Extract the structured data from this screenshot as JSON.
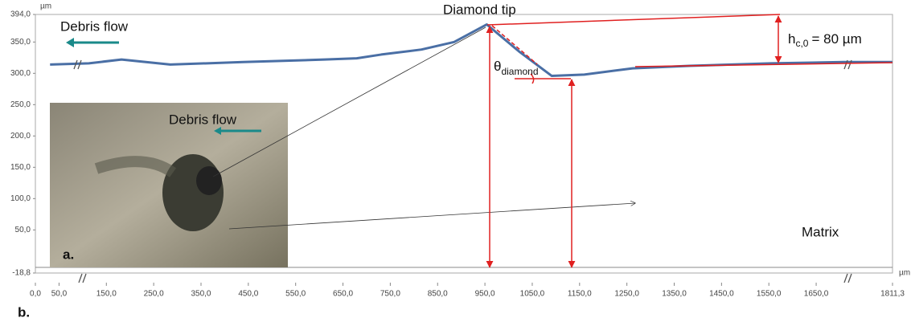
{
  "chart_data": {
    "type": "line",
    "y_unit": "µm",
    "x_unit": "µm",
    "x": [
      31,
      113,
      182,
      285,
      439,
      611,
      679,
      731,
      816,
      885,
      954,
      1022,
      1091,
      1160,
      1262,
      1382,
      1554,
      1708,
      1811
    ],
    "series": [
      {
        "color": "#4a6fa5",
        "values": [
          314,
          316,
          322,
          314,
          318,
          322,
          324,
          330,
          338,
          350,
          378,
          335,
          296,
          298,
          308,
          312,
          316,
          318,
          318
        ]
      }
    ],
    "xlim": [
      0,
      1811.3
    ],
    "ylim": [
      -18.8,
      394
    ],
    "xticks": [
      {
        "value": 0,
        "label": "0,0"
      },
      {
        "value": 50,
        "label": "50,0"
      },
      {
        "value": 150,
        "label": "150,0"
      },
      {
        "value": 250,
        "label": "250,0"
      },
      {
        "value": 350,
        "label": "350,0"
      },
      {
        "value": 450,
        "label": "450,0"
      },
      {
        "value": 550,
        "label": "550,0"
      },
      {
        "value": 650,
        "label": "650,0"
      },
      {
        "value": 750,
        "label": "750,0"
      },
      {
        "value": 850,
        "label": "850,0"
      },
      {
        "value": 950,
        "label": "950,0"
      },
      {
        "value": 1050,
        "label": "1050,0"
      },
      {
        "value": 1150,
        "label": "1150,0"
      },
      {
        "value": 1250,
        "label": "1250,0"
      },
      {
        "value": 1350,
        "label": "1350,0"
      },
      {
        "value": 1450,
        "label": "1450,0"
      },
      {
        "value": 1550,
        "label": "1550,0"
      },
      {
        "value": 1650,
        "label": "1650,0"
      },
      {
        "value": 1811.3,
        "label": "1811,3"
      }
    ],
    "yticks": [
      {
        "value": 394,
        "label": "394,0"
      },
      {
        "value": 350,
        "label": "350,0"
      },
      {
        "value": 300,
        "label": "300,0"
      },
      {
        "value": 250,
        "label": "250,0"
      },
      {
        "value": 200,
        "label": "200,0"
      },
      {
        "value": 150,
        "label": "150,0"
      },
      {
        "value": 100,
        "label": "100,0"
      },
      {
        "value": 50,
        "label": "50,0"
      },
      {
        "value": -18.8,
        "label": "-18,8"
      }
    ],
    "annotations": {
      "debris_flow": "Debris flow",
      "diamond_tip": "Diamond tip",
      "h": "h",
      "h_sub": "c,0",
      "h_value": "= 80 µm",
      "theta": "θ",
      "theta_sub": "diamond",
      "matrix": "Matrix",
      "inset_label": "a.",
      "inset_debris_flow": "Debris flow",
      "figure_label": "b."
    }
  }
}
